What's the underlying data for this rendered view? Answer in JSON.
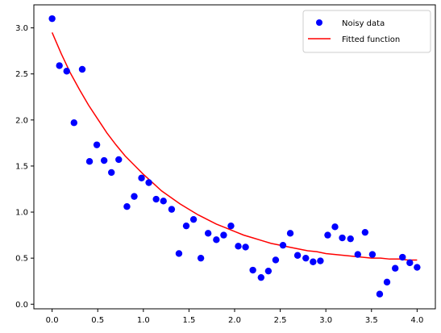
{
  "chart_data": {
    "type": "scatter",
    "title": "",
    "xlabel": "",
    "ylabel": "",
    "xlim": [
      -0.2,
      4.2
    ],
    "ylim": [
      -0.05,
      3.25
    ],
    "x_ticks": [
      "0.0",
      "0.5",
      "1.0",
      "1.5",
      "2.0",
      "2.5",
      "3.0",
      "3.5",
      "4.0"
    ],
    "y_ticks": [
      "0.0",
      "0.5",
      "1.0",
      "1.5",
      "2.0",
      "2.5",
      "3.0"
    ],
    "grid": false,
    "legend": {
      "placement": "top-right",
      "entries": [
        {
          "label": "Noisy data",
          "marker": "circle",
          "color": "#0000ff"
        },
        {
          "label": "Fitted function",
          "marker": "line",
          "color": "#ff0000"
        }
      ]
    },
    "series": [
      {
        "name": "Noisy data",
        "type": "scatter",
        "color": "#0000ff",
        "x": [
          0.0,
          0.08,
          0.16,
          0.24,
          0.33,
          0.41,
          0.49,
          0.57,
          0.65,
          0.73,
          0.82,
          0.9,
          0.98,
          1.06,
          1.14,
          1.22,
          1.31,
          1.39,
          1.47,
          1.55,
          1.63,
          1.71,
          1.8,
          1.88,
          1.96,
          2.04,
          2.12,
          2.2,
          2.29,
          2.37,
          2.45,
          2.53,
          2.61,
          2.69,
          2.78,
          2.86,
          2.94,
          3.02,
          3.1,
          3.18,
          3.27,
          3.35,
          3.43,
          3.51,
          3.59,
          3.67,
          3.76,
          3.84,
          3.92,
          4.0
        ],
        "y": [
          3.1,
          2.59,
          2.53,
          1.97,
          2.55,
          1.55,
          1.73,
          1.56,
          1.43,
          1.57,
          1.06,
          1.17,
          1.37,
          1.32,
          1.14,
          1.12,
          1.03,
          0.55,
          0.85,
          0.92,
          0.5,
          0.77,
          0.7,
          0.75,
          0.85,
          0.63,
          0.62,
          0.37,
          0.29,
          0.36,
          0.48,
          0.64,
          0.77,
          0.53,
          0.5,
          0.46,
          0.47,
          0.75,
          0.84,
          0.72,
          0.71,
          0.54,
          0.78,
          0.54,
          0.11,
          0.24,
          0.39,
          0.51,
          0.45,
          0.4
        ]
      },
      {
        "name": "Fitted function",
        "type": "line",
        "color": "#ff0000",
        "x": [
          0.0,
          0.1,
          0.2,
          0.3,
          0.4,
          0.5,
          0.6,
          0.7,
          0.8,
          0.9,
          1.0,
          1.1,
          1.2,
          1.3,
          1.4,
          1.5,
          1.6,
          1.7,
          1.8,
          1.9,
          2.0,
          2.1,
          2.2,
          2.3,
          2.4,
          2.5,
          2.6,
          2.7,
          2.8,
          2.9,
          3.0,
          3.1,
          3.2,
          3.3,
          3.4,
          3.5,
          3.6,
          3.7,
          3.8,
          3.9,
          4.0
        ],
        "y": [
          2.95,
          2.72,
          2.51,
          2.33,
          2.16,
          2.01,
          1.86,
          1.73,
          1.61,
          1.51,
          1.41,
          1.32,
          1.23,
          1.16,
          1.09,
          1.03,
          0.97,
          0.92,
          0.87,
          0.83,
          0.79,
          0.75,
          0.72,
          0.69,
          0.66,
          0.64,
          0.62,
          0.6,
          0.58,
          0.57,
          0.55,
          0.54,
          0.53,
          0.52,
          0.51,
          0.5,
          0.5,
          0.49,
          0.49,
          0.48,
          0.48
        ]
      }
    ]
  }
}
